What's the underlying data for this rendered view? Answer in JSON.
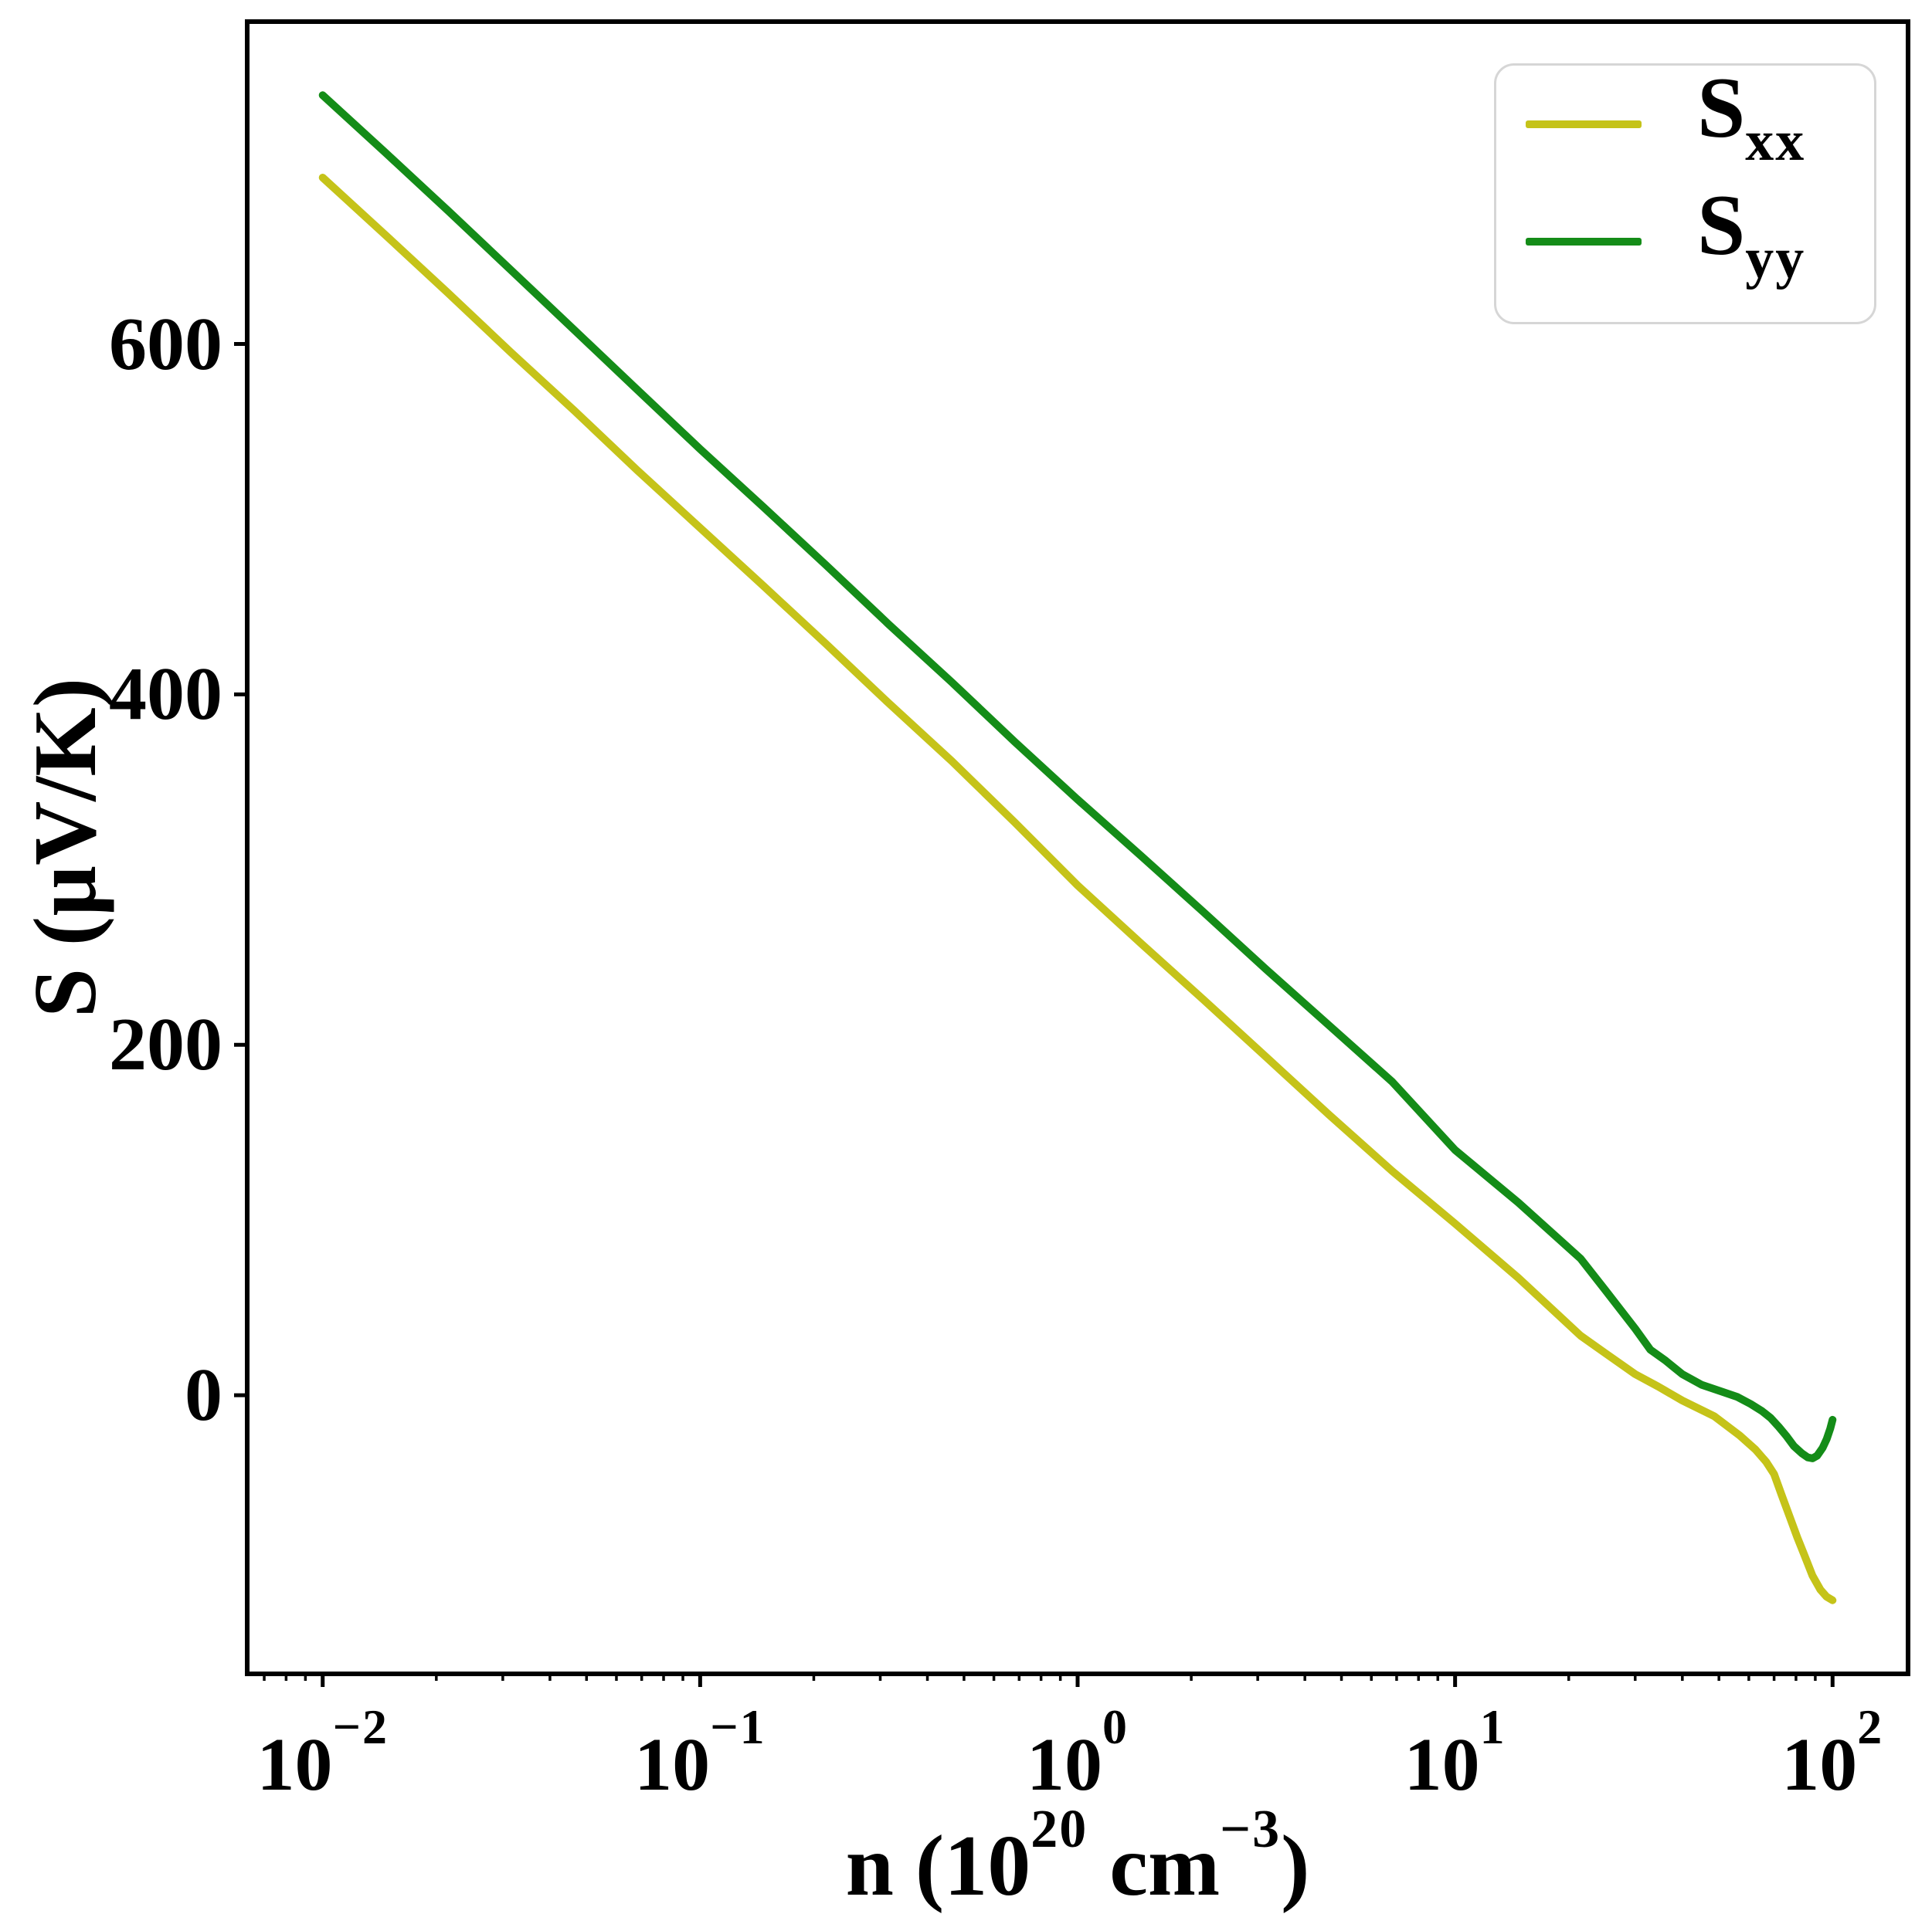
{
  "figure": {
    "background": "#ffffff"
  },
  "axes": {
    "ylabel": "S (µV/K)",
    "xlabel_parts": [
      {
        "text": "n (10",
        "sup": false
      },
      {
        "text": "20",
        "sup": true
      },
      {
        "text": " cm",
        "sup": false
      },
      {
        "text": "−3",
        "sup": true
      },
      {
        "text": ")",
        "sup": false
      }
    ],
    "x_tick_labels": [
      {
        "base": "10",
        "exp": "−2"
      },
      {
        "base": "10",
        "exp": "−1"
      },
      {
        "base": "10",
        "exp": "0"
      },
      {
        "base": "10",
        "exp": "1"
      },
      {
        "base": "10",
        "exp": "2"
      }
    ],
    "y_tick_labels": [
      "0",
      "200",
      "400",
      "600"
    ]
  },
  "legend": {
    "items": [
      {
        "label_base": "S",
        "label_sub": "xx",
        "color": "#c5c319"
      },
      {
        "label_base": "S",
        "label_sub": "yy",
        "color": "#148c18"
      }
    ]
  },
  "chart_data": {
    "type": "line",
    "title": "",
    "xlabel": "n (10^20 cm^-3)",
    "ylabel": "S (µV/K)",
    "x_scale": "log",
    "xlim": [
      0.0063,
      158.5
    ],
    "ylim": [
      -159,
      784
    ],
    "x_major_ticks": [
      0.01,
      0.1,
      1,
      10,
      100
    ],
    "y_ticks": [
      0,
      200,
      400,
      600
    ],
    "grid": false,
    "legend_position": "upper right",
    "line_width": 10,
    "series": [
      {
        "name": "Sxx",
        "color": "#c5c319",
        "points": [
          [
            0.01,
            695
          ],
          [
            0.0147,
            662
          ],
          [
            0.0215,
            629
          ],
          [
            0.0316,
            595
          ],
          [
            0.0464,
            562
          ],
          [
            0.0681,
            528
          ],
          [
            0.1,
            495
          ],
          [
            0.147,
            462
          ],
          [
            0.215,
            429
          ],
          [
            0.316,
            395
          ],
          [
            0.464,
            362
          ],
          [
            0.681,
            327
          ],
          [
            1,
            291
          ],
          [
            1.47,
            258
          ],
          [
            2.15,
            226
          ],
          [
            3.16,
            193
          ],
          [
            4.64,
            160
          ],
          [
            6.81,
            128
          ],
          [
            10,
            98
          ],
          [
            14.7,
            67
          ],
          [
            21.5,
            34
          ],
          [
            25,
            24
          ],
          [
            30,
            12
          ],
          [
            34.5,
            5
          ],
          [
            40,
            -3
          ],
          [
            48.6,
            -12
          ],
          [
            56.8,
            -23
          ],
          [
            62.5,
            -31
          ],
          [
            66.7,
            -38
          ],
          [
            70,
            -45
          ],
          [
            73.3,
            -57
          ],
          [
            76.9,
            -69
          ],
          [
            80.6,
            -81
          ],
          [
            84.5,
            -92
          ],
          [
            88.5,
            -103
          ],
          [
            92.9,
            -111
          ],
          [
            96.4,
            -115
          ],
          [
            100,
            -117
          ]
        ]
      },
      {
        "name": "Syy",
        "color": "#148c18",
        "points": [
          [
            0.01,
            742
          ],
          [
            0.0147,
            709
          ],
          [
            0.0215,
            676
          ],
          [
            0.0316,
            642
          ],
          [
            0.0464,
            608
          ],
          [
            0.0681,
            574
          ],
          [
            0.1,
            540
          ],
          [
            0.147,
            507
          ],
          [
            0.215,
            474
          ],
          [
            0.316,
            440
          ],
          [
            0.464,
            407
          ],
          [
            0.681,
            373
          ],
          [
            1,
            340
          ],
          [
            1.47,
            308
          ],
          [
            2.15,
            276
          ],
          [
            3.16,
            243
          ],
          [
            4.64,
            211
          ],
          [
            6.81,
            179
          ],
          [
            10,
            140
          ],
          [
            14.7,
            110
          ],
          [
            21.5,
            78
          ],
          [
            25,
            60
          ],
          [
            30,
            38
          ],
          [
            32.9,
            26
          ],
          [
            36,
            20
          ],
          [
            40,
            12
          ],
          [
            45,
            6
          ],
          [
            51,
            2
          ],
          [
            56,
            -1
          ],
          [
            60.7,
            -5
          ],
          [
            65,
            -9
          ],
          [
            68.6,
            -13
          ],
          [
            72,
            -18
          ],
          [
            75.3,
            -23
          ],
          [
            79,
            -29
          ],
          [
            82.8,
            -33
          ],
          [
            86,
            -35.5
          ],
          [
            88.5,
            -36
          ],
          [
            91,
            -34.5
          ],
          [
            94.1,
            -30
          ],
          [
            96.5,
            -25
          ],
          [
            98.6,
            -19
          ],
          [
            100,
            -14
          ]
        ]
      }
    ]
  }
}
